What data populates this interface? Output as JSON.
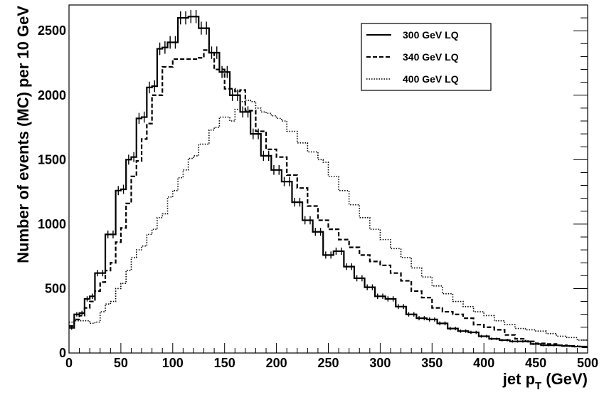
{
  "chart_data": {
    "type": "line",
    "step": true,
    "title": "",
    "xlabel": "jet p",
    "xlabel_subscript": "T",
    "xlabel_unit": " (GeV)",
    "ylabel": "Number of events (MC) per 10 GeV",
    "xlim": [
      0,
      500
    ],
    "ylim": [
      0,
      2700
    ],
    "xticks": [
      0,
      50,
      100,
      150,
      200,
      250,
      300,
      350,
      400,
      450,
      500
    ],
    "yticks": [
      0,
      500,
      1000,
      1500,
      2000,
      2500
    ],
    "xtick_labels": [
      "0",
      "50",
      "100",
      "150",
      "200",
      "250",
      "300",
      "350",
      "400",
      "450",
      "500"
    ],
    "ytick_labels": [
      "0",
      "500",
      "1000",
      "1500",
      "2000",
      "2500"
    ],
    "grid": false,
    "legend_position": "top-right",
    "bin_width": 5,
    "series": [
      {
        "name": "300 GeV LQ",
        "style": "solid",
        "error_bars": true,
        "values": [
          195,
          300,
          310,
          420,
          440,
          620,
          620,
          920,
          920,
          1260,
          1270,
          1500,
          1520,
          1820,
          1830,
          2060,
          2070,
          2360,
          2370,
          2410,
          2410,
          2600,
          2600,
          2610,
          2610,
          2520,
          2520,
          2330,
          2330,
          2180,
          2180,
          2000,
          2000,
          1870,
          1870,
          1700,
          1700,
          1530,
          1530,
          1420,
          1420,
          1330,
          1330,
          1170,
          1170,
          1030,
          1030,
          940,
          940,
          760,
          760,
          790,
          790,
          670,
          670,
          580,
          580,
          510,
          510,
          440,
          440,
          420,
          420,
          360,
          360,
          300,
          300,
          270,
          270,
          260,
          260,
          230,
          230,
          190,
          190,
          170,
          170,
          160,
          160,
          130,
          130,
          110,
          110,
          100,
          100,
          90,
          90,
          90,
          90,
          70,
          70,
          60,
          60,
          60,
          60,
          55,
          55,
          50,
          50,
          45
        ]
      },
      {
        "name": "340 GeV LQ",
        "style": "dashed",
        "error_bars": false,
        "values": [
          210,
          260,
          290,
          350,
          400,
          480,
          550,
          640,
          700,
          860,
          970,
          1160,
          1370,
          1490,
          1660,
          1780,
          2000,
          2000,
          2220,
          2220,
          2280,
          2280,
          2280,
          2280,
          2280,
          2290,
          2350,
          2330,
          2200,
          2200,
          2050,
          2050,
          2030,
          2040,
          1880,
          1880,
          1720,
          1720,
          1580,
          1580,
          1520,
          1520,
          1380,
          1380,
          1280,
          1280,
          1140,
          1140,
          1030,
          1030,
          960,
          960,
          880,
          880,
          820,
          820,
          760,
          760,
          710,
          710,
          680,
          680,
          620,
          620,
          560,
          560,
          480,
          480,
          430,
          430,
          350,
          350,
          320,
          320,
          300,
          300,
          270,
          270,
          220,
          220,
          200,
          200,
          180,
          180,
          140,
          140,
          110,
          110,
          90,
          90,
          75,
          75,
          70,
          70,
          60,
          60,
          55,
          55,
          50,
          50
        ]
      },
      {
        "name": "400 GeV LQ",
        "style": "dotted",
        "error_bars": false,
        "values": [
          240,
          250,
          250,
          250,
          230,
          240,
          320,
          380,
          400,
          500,
          540,
          640,
          740,
          800,
          830,
          920,
          960,
          1050,
          1080,
          1210,
          1260,
          1360,
          1420,
          1510,
          1530,
          1620,
          1620,
          1730,
          1750,
          1830,
          1830,
          1800,
          1890,
          1950,
          1960,
          1950,
          1900,
          1870,
          1860,
          1840,
          1820,
          1800,
          1720,
          1720,
          1630,
          1630,
          1560,
          1560,
          1500,
          1480,
          1370,
          1370,
          1260,
          1260,
          1150,
          1150,
          1050,
          1050,
          960,
          960,
          880,
          880,
          810,
          810,
          740,
          740,
          660,
          660,
          590,
          590,
          520,
          520,
          460,
          460,
          400,
          400,
          360,
          360,
          320,
          320,
          290,
          290,
          250,
          250,
          220,
          220,
          190,
          190,
          180,
          180,
          170,
          170,
          150,
          150,
          130,
          130,
          120,
          120,
          100,
          100
        ]
      }
    ]
  }
}
